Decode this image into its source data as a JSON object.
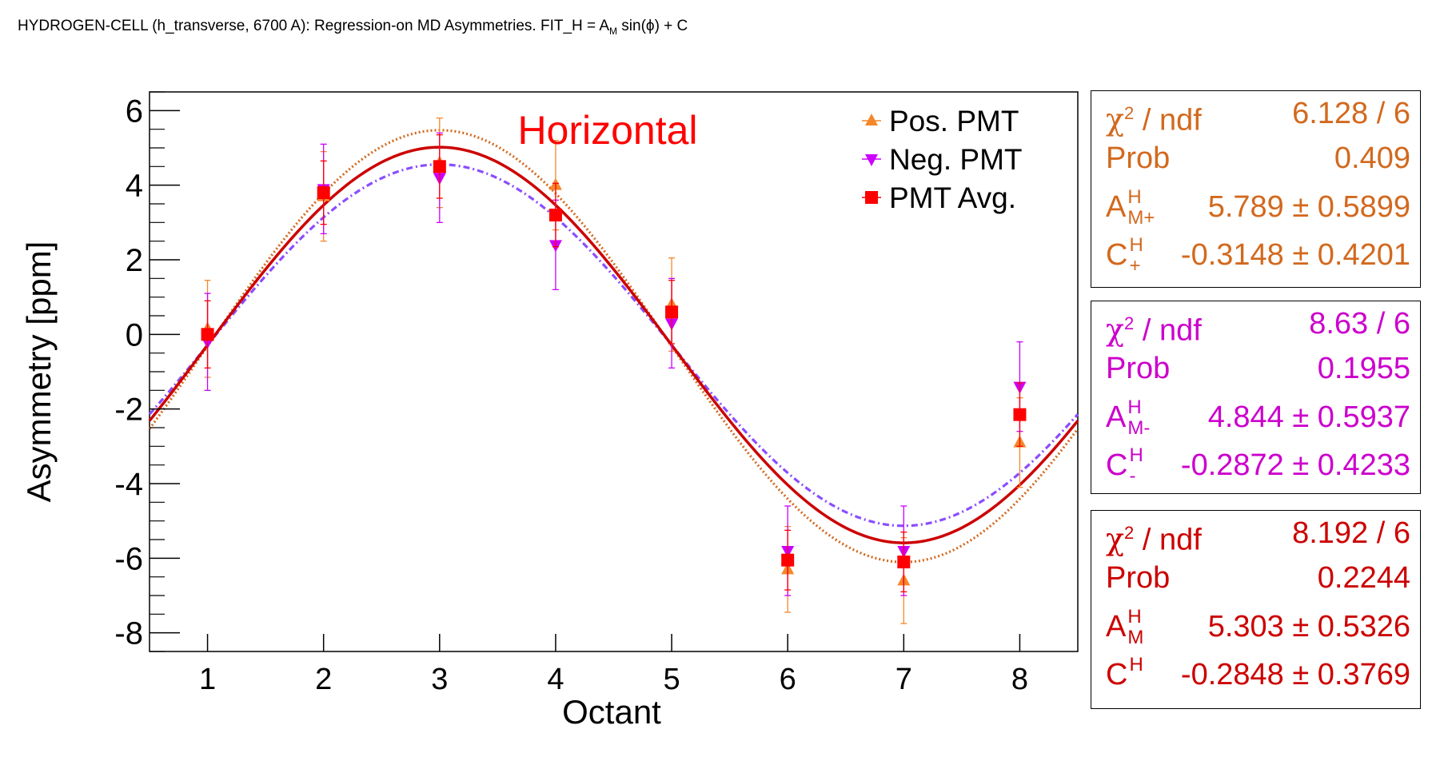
{
  "title": {
    "text_before": "HYDROGEN-CELL (h_transverse, 6700 A): Regression-on MD Asymmetries. FIT_H = A",
    "sub": "M",
    "text_after": " sin(ϕ) + C"
  },
  "chart_data": {
    "type": "scatter",
    "title": "Horizontal",
    "title_color": "#ff0000",
    "xlabel": "Octant",
    "ylabel": "Asymmetry [ppm]",
    "xlim": [
      0.5,
      8.5
    ],
    "ylim": [
      -8.5,
      6.5
    ],
    "x_ticks": [
      1,
      2,
      3,
      4,
      5,
      6,
      7,
      8
    ],
    "y_ticks": [
      -8,
      -6,
      -4,
      -2,
      0,
      2,
      4,
      6
    ],
    "x_tick_labels": [
      "1",
      "2",
      "3",
      "4",
      "5",
      "6",
      "7",
      "8"
    ],
    "y_tick_labels": [
      "-8",
      "-6",
      "-4",
      "-2",
      "0",
      "2",
      "4",
      "6"
    ],
    "legend_position": "top-right",
    "series": [
      {
        "name": "Pos. PMT",
        "color": "#f5872a",
        "marker": "triangle-up",
        "x": [
          1,
          2,
          3,
          4,
          5,
          6,
          7,
          8
        ],
        "y": [
          0.15,
          3.7,
          4.6,
          4.0,
          0.8,
          -6.3,
          -6.6,
          -2.9
        ],
        "err": [
          1.3,
          1.2,
          1.2,
          1.2,
          1.25,
          1.15,
          1.15,
          1.2
        ]
      },
      {
        "name": "Neg. PMT",
        "color": "#cc00ff",
        "marker": "triangle-down",
        "x": [
          1,
          2,
          3,
          4,
          5,
          6,
          7,
          8
        ],
        "y": [
          -0.2,
          3.9,
          4.2,
          2.4,
          0.3,
          -5.8,
          -5.8,
          -1.4
        ],
        "err": [
          1.3,
          1.2,
          1.2,
          1.2,
          1.2,
          1.2,
          1.2,
          1.2
        ]
      },
      {
        "name": "PMT Avg.",
        "color": "#ff0000",
        "marker": "square",
        "x": [
          1,
          2,
          3,
          4,
          5,
          6,
          7,
          8
        ],
        "y": [
          0.0,
          3.8,
          4.5,
          3.2,
          0.6,
          -6.05,
          -6.1,
          -2.15
        ],
        "err": [
          0.9,
          0.85,
          0.85,
          0.85,
          0.85,
          0.8,
          0.8,
          0.85
        ]
      }
    ],
    "fits": [
      {
        "name": "Pos. PMT fit",
        "color": "#d2691e",
        "style": "dotted",
        "A": 5.789,
        "C": -0.3148
      },
      {
        "name": "Neg. PMT fit",
        "color": "#8a4dff",
        "style": "dashdot",
        "A": 4.844,
        "C": -0.2872
      },
      {
        "name": "PMT Avg. fit",
        "color": "#cc0000",
        "style": "solid",
        "A": 5.303,
        "C": -0.2848
      }
    ]
  },
  "stats": [
    {
      "color": "#d2691e",
      "chi_label": "χ",
      "chi_sup": "2",
      "chi_rest": " / ndf",
      "chi_val": "6.128 / 6",
      "prob_label": "Prob",
      "prob_val": "0.409",
      "a_main": "A",
      "a_sup": "H",
      "a_sub": "M+",
      "a_val": "5.789 ± 0.5899",
      "c_main": "C",
      "c_sup": "H",
      "c_sub": "+",
      "c_val": "-0.3148 ± 0.4201"
    },
    {
      "color": "#cc00cc",
      "chi_label": "χ",
      "chi_sup": "2",
      "chi_rest": " / ndf",
      "chi_val": "8.63 / 6",
      "prob_label": "Prob",
      "prob_val": "0.1955",
      "a_main": "A",
      "a_sup": "H",
      "a_sub": "M-",
      "a_val": "4.844 ± 0.5937",
      "c_main": "C",
      "c_sup": "H",
      "c_sub": "-",
      "c_val": "-0.2872 ± 0.4233"
    },
    {
      "color": "#cc0000",
      "chi_label": "χ",
      "chi_sup": "2",
      "chi_rest": " / ndf",
      "chi_val": "8.192 / 6",
      "prob_label": "Prob",
      "prob_val": "0.2244",
      "a_main": "A",
      "a_sup": "H",
      "a_sub": "M",
      "a_val": "5.303 ± 0.5326",
      "c_main": "C",
      "c_sup": "H",
      "c_sub": "",
      "c_val": "-0.2848 ± 0.3769"
    }
  ]
}
